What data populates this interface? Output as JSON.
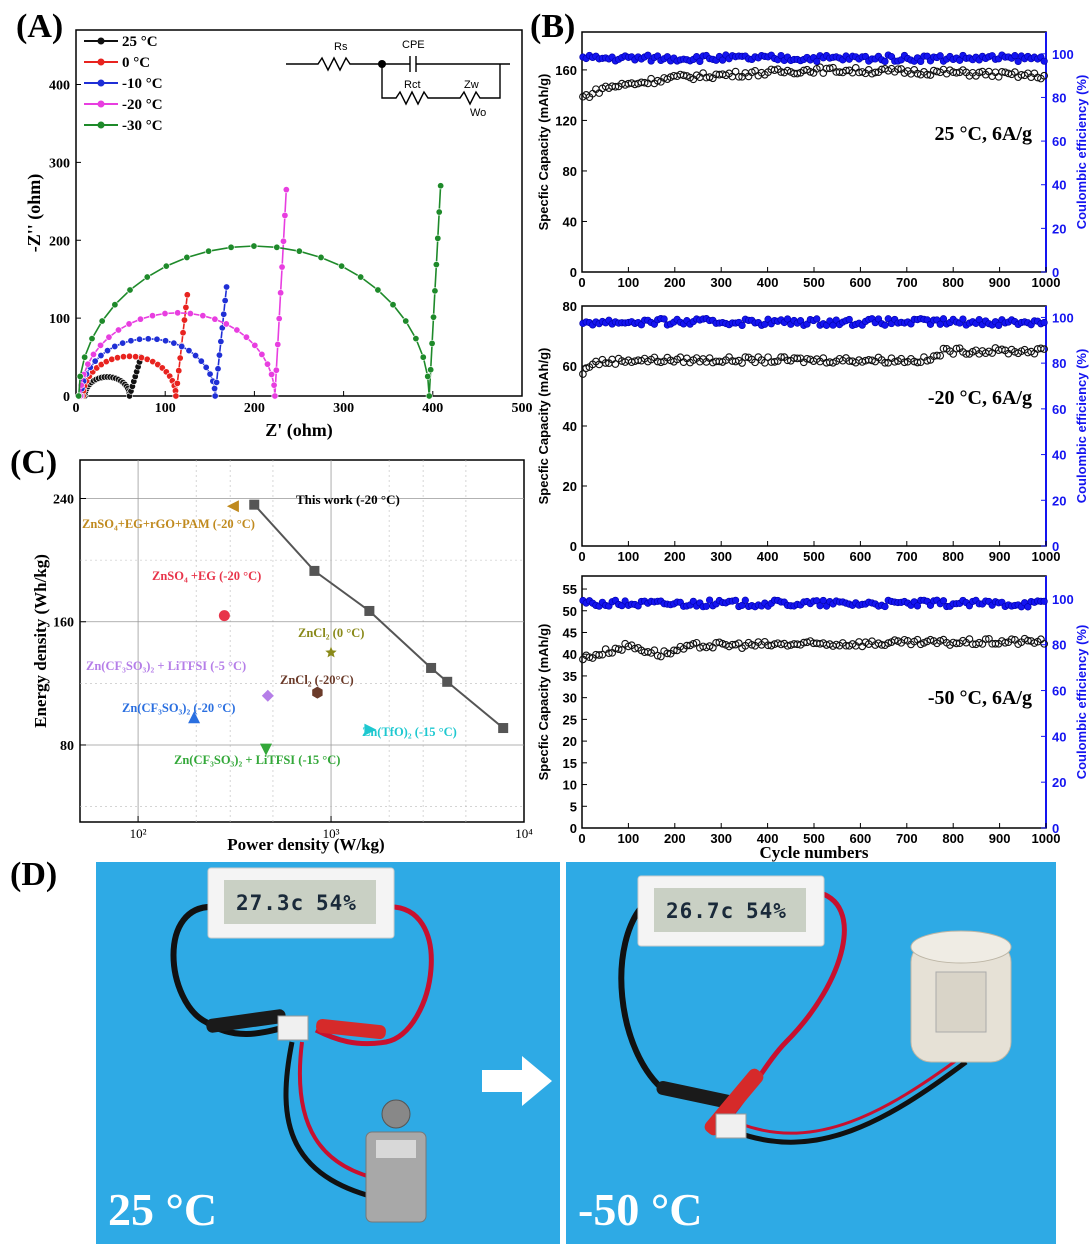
{
  "panels": {
    "A": "(A)",
    "B": "(B)",
    "C": "(C)",
    "D": "(D)"
  },
  "colors": {
    "t25": "#111111",
    "t0": "#e8231f",
    "t_10": "#1f2fd6",
    "t_20": "#e83ee0",
    "t_30": "#1e8a2a",
    "ce_blue": "#1414f0",
    "water_blue": "#22a6e3"
  },
  "chart_data": [
    {
      "id": "A",
      "type": "scatter",
      "xlabel": "Z' (ohm)",
      "ylabel": "-Z'' (ohm)",
      "xlim": [
        0,
        500
      ],
      "ylim": [
        0,
        470
      ],
      "xticks": [
        "0",
        "100",
        "200",
        "300",
        "400",
        "500"
      ],
      "yticks": [
        "0",
        "100",
        "200",
        "300",
        "400"
      ],
      "legend_position": "top-left",
      "circuit": {
        "labels": [
          "Rs",
          "CPE",
          "Rct",
          "Zw",
          "Wo"
        ]
      },
      "series": [
        {
          "name": "25 °C",
          "color_key": "t25",
          "arc": {
            "r0": 10,
            "rct": 50,
            "tail_len": 50
          }
        },
        {
          "name": "0 °C",
          "color_key": "t0",
          "arc": {
            "r0": 8,
            "rct": 104,
            "tail_len": 130
          }
        },
        {
          "name": "-10 °C",
          "color_key": "t_10",
          "arc": {
            "r0": 6,
            "rct": 150,
            "tail_len": 140
          }
        },
        {
          "name": "-20 °C",
          "color_key": "t_20",
          "arc": {
            "r0": 5,
            "rct": 218,
            "tail_len": 265
          }
        },
        {
          "name": "-30 °C",
          "color_key": "t_30",
          "arc": {
            "r0": 3,
            "rct": 393,
            "tail_len": 270
          }
        }
      ]
    },
    {
      "id": "B1",
      "type": "scatter",
      "annotation": "25 °C, 6A/g",
      "ylabel": "Specfic Capacity (mAh/g)",
      "y2label": "Coulombic efficiency (%)",
      "xlim": [
        0,
        1000
      ],
      "ylim": [
        0,
        190
      ],
      "yticks": [
        "0",
        "40",
        "80",
        "120",
        "160"
      ],
      "y2lim": [
        0,
        110
      ],
      "y2ticks": [
        "0",
        "20",
        "40",
        "60",
        "80",
        "100"
      ],
      "xticks": [
        "0",
        "100",
        "200",
        "300",
        "400",
        "500",
        "600",
        "700",
        "800",
        "900",
        "1000"
      ],
      "capacity_profile": [
        [
          0,
          138
        ],
        [
          50,
          146
        ],
        [
          200,
          154
        ],
        [
          500,
          160
        ],
        [
          800,
          158
        ],
        [
          1000,
          155
        ]
      ],
      "ce_value": 98
    },
    {
      "id": "B2",
      "type": "scatter",
      "annotation": "-20 °C, 6A/g",
      "ylabel": "Specfic Capacity (mAh/g)",
      "y2label": "Coulombic efficiency (%)",
      "xlim": [
        0,
        1000
      ],
      "ylim": [
        0,
        80
      ],
      "yticks": [
        "0",
        "20",
        "40",
        "60",
        "80"
      ],
      "y2lim": [
        0,
        105
      ],
      "y2ticks": [
        "0",
        "20",
        "40",
        "60",
        "80",
        "100"
      ],
      "xticks": [
        "0",
        "100",
        "200",
        "300",
        "400",
        "500",
        "600",
        "700",
        "800",
        "900",
        "1000"
      ],
      "capacity_profile": [
        [
          0,
          57
        ],
        [
          20,
          61
        ],
        [
          100,
          62
        ],
        [
          750,
          62
        ],
        [
          780,
          65
        ],
        [
          1000,
          65
        ]
      ],
      "ce_value": 98
    },
    {
      "id": "B3",
      "type": "scatter",
      "annotation": "-50 °C, 6A/g",
      "ylabel": "Specfic Capacity (mAh/g)",
      "y2label": "Coulombic efficiency (%)",
      "xlabel": "Cycle numbers",
      "xlim": [
        0,
        1000
      ],
      "ylim": [
        0,
        58
      ],
      "yticks": [
        "0",
        "5",
        "10",
        "15",
        "20",
        "25",
        "30",
        "35",
        "40",
        "45",
        "50",
        "55"
      ],
      "y2lim": [
        0,
        110
      ],
      "y2ticks": [
        "0",
        "20",
        "40",
        "60",
        "80",
        "100"
      ],
      "xticks": [
        "0",
        "100",
        "200",
        "300",
        "400",
        "500",
        "600",
        "700",
        "800",
        "900",
        "1000"
      ],
      "capacity_profile": [
        [
          0,
          39
        ],
        [
          100,
          42
        ],
        [
          170,
          40
        ],
        [
          250,
          42
        ],
        [
          1000,
          43
        ]
      ],
      "ce_value": 98
    },
    {
      "id": "C",
      "type": "scatter",
      "xlabel": "Power density (W/kg)",
      "ylabel": "Energy density (Wh/kg)",
      "xscale": "log",
      "xlim": [
        50,
        10000
      ],
      "ylim": [
        30,
        265
      ],
      "yticks": [
        "80",
        "160",
        "240"
      ],
      "xticks": [
        "10²",
        "10³",
        "10⁴"
      ],
      "this_work": {
        "label": "This work (-20 °C)",
        "x": [
          400,
          820,
          1580,
          3300,
          4000,
          7800
        ],
        "y": [
          236,
          193,
          167,
          130,
          121,
          91
        ]
      },
      "comparisons": [
        {
          "label": "ZnSO₄+EG+rGO+PAM (-20 °C)",
          "x": 310,
          "y": 235,
          "marker": "tri-left",
          "color": "#c08a1e"
        },
        {
          "label": "ZnSO₄ +EG (-20 °C)",
          "x": 280,
          "y": 164,
          "marker": "circle",
          "color": "#e8344a"
        },
        {
          "label": "ZnCl₂ (0 °C)",
          "x": 1000,
          "y": 140,
          "marker": "star",
          "color": "#8a8a1a"
        },
        {
          "label": "Zn(CF₃SO₃)₂ + LiTFSI (-5 °C)",
          "x": 470,
          "y": 112,
          "marker": "diamond",
          "color": "#b57ee8"
        },
        {
          "label": "ZnCl₂ (-20°C)",
          "x": 850,
          "y": 114,
          "marker": "hexagon",
          "color": "#6b3b2a"
        },
        {
          "label": "Zn(CF₃SO₃)₂ (-20 °C)",
          "x": 195,
          "y": 98,
          "marker": "tri-up",
          "color": "#2a6fe0"
        },
        {
          "label": "Zn(TfO)₂ (-15 °C)",
          "x": 1600,
          "y": 90,
          "marker": "tri-right",
          "color": "#1ec8d0"
        },
        {
          "label": "Zn(CF₃SO₃)₂ + LiTFSI (-15 °C)",
          "x": 460,
          "y": 77,
          "marker": "tri-down",
          "color": "#34a83a"
        }
      ]
    }
  ],
  "photos": {
    "left": {
      "label": "25 °C",
      "lcd_temp": "27.3c",
      "lcd_hum": "54%"
    },
    "right": {
      "label": "-50 °C",
      "lcd_temp": "26.7c",
      "lcd_hum": "54%"
    }
  }
}
